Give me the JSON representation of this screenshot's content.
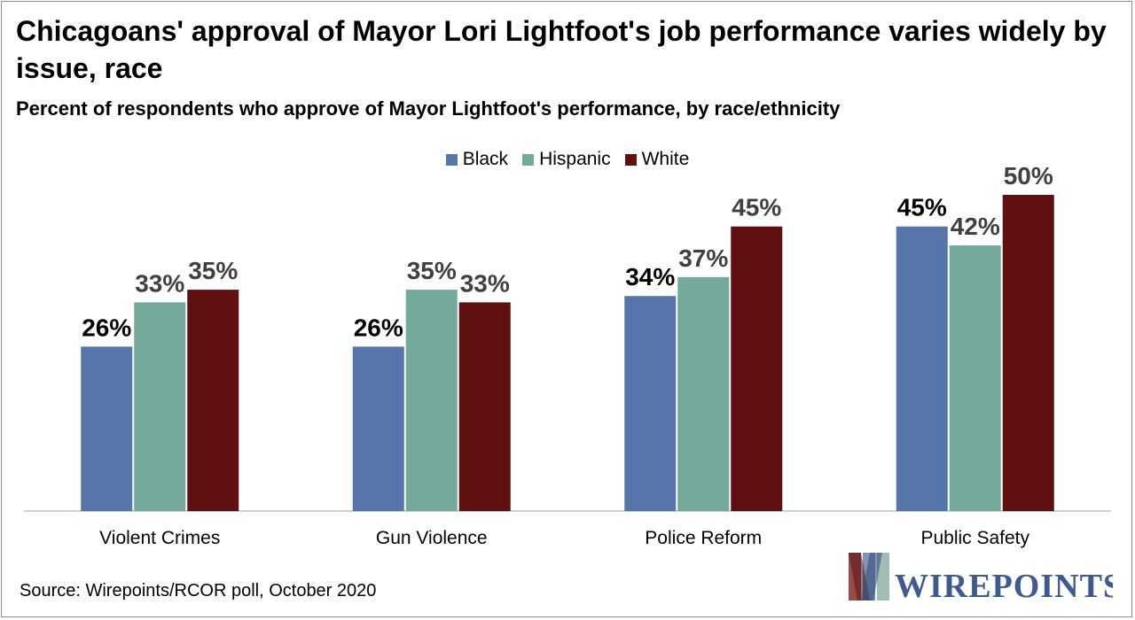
{
  "title": "Chicagoans' approval of Mayor Lori Lightfoot's job performance varies widely by issue, race",
  "subtitle": "Percent of respondents who approve of Mayor Lightfoot's performance, by race/ethnicity",
  "source": "Source: Wirepoints/RCOR poll, October 2020",
  "logo_text": "WIREPOINTS",
  "colors": {
    "Black": "#5675aa",
    "Hispanic": "#74aa9b",
    "White": "#601011",
    "axis": "#bfbfbf",
    "label_dark": "#000000",
    "label_gray": "#404040"
  },
  "chart_data": {
    "type": "bar",
    "categories": [
      "Violent Crimes",
      "Gun Violence",
      "Police Reform",
      "Public Safety"
    ],
    "series": [
      {
        "name": "Black",
        "values": [
          26,
          26,
          34,
          45
        ],
        "labels": [
          "26%",
          "26%",
          "34%",
          "45%"
        ]
      },
      {
        "name": "Hispanic",
        "values": [
          33,
          35,
          37,
          42
        ],
        "labels": [
          "33%",
          "35%",
          "37%",
          "42%"
        ]
      },
      {
        "name": "White",
        "values": [
          35,
          33,
          45,
          50
        ],
        "labels": [
          "35%",
          "33%",
          "45%",
          "50%"
        ]
      }
    ],
    "ylim": [
      0,
      50
    ],
    "grid": false,
    "legend": "top-center",
    "title": "Chicagoans' approval of Mayor Lori Lightfoot's job performance varies widely by issue, race",
    "subtitle": "Percent of respondents who approve of Mayor Lightfoot's performance, by race/ethnicity"
  }
}
